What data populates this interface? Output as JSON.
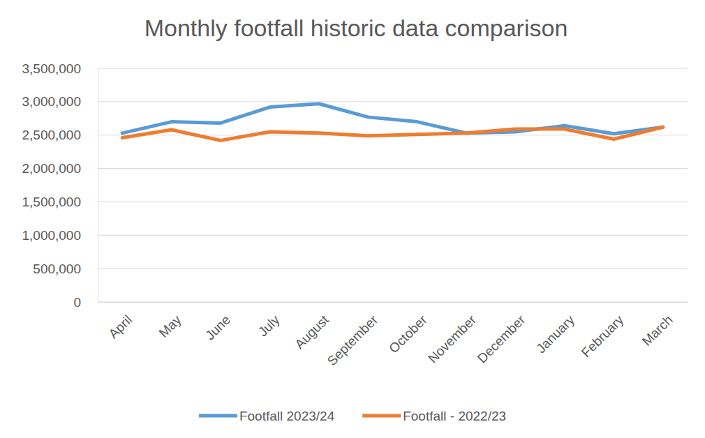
{
  "chart_data": {
    "type": "line",
    "title": "Monthly footfall historic data comparison",
    "categories": [
      "April",
      "May",
      "June",
      "July",
      "August",
      "September",
      "October",
      "November",
      "December",
      "January",
      "February",
      "March"
    ],
    "series": [
      {
        "name": "Footfall 2023/24",
        "color": "#5b9bd5",
        "values": [
          2530000,
          2700000,
          2680000,
          2920000,
          2970000,
          2770000,
          2700000,
          2530000,
          2550000,
          2640000,
          2520000,
          2620000
        ]
      },
      {
        "name": "Footfall - 2022/23",
        "color": "#ed7d31",
        "values": [
          2460000,
          2580000,
          2420000,
          2550000,
          2530000,
          2490000,
          2510000,
          2530000,
          2590000,
          2590000,
          2440000,
          2620000
        ]
      }
    ],
    "ylim": [
      0,
      3500000
    ],
    "yticks": [
      0,
      {
        "value": 500000,
        "label": "500,000"
      },
      {
        "value": 1000000,
        "label": "1,000,000"
      },
      {
        "value": 1500000,
        "label": "1,500,000"
      },
      {
        "value": 2000000,
        "label": "2,000,000"
      },
      {
        "value": 2500000,
        "label": "2,500,000"
      },
      {
        "value": 3000000,
        "label": "3,000,000"
      },
      {
        "value": 3500000,
        "label": "3,500,000"
      }
    ],
    "grid": true,
    "legend": "bottom"
  }
}
